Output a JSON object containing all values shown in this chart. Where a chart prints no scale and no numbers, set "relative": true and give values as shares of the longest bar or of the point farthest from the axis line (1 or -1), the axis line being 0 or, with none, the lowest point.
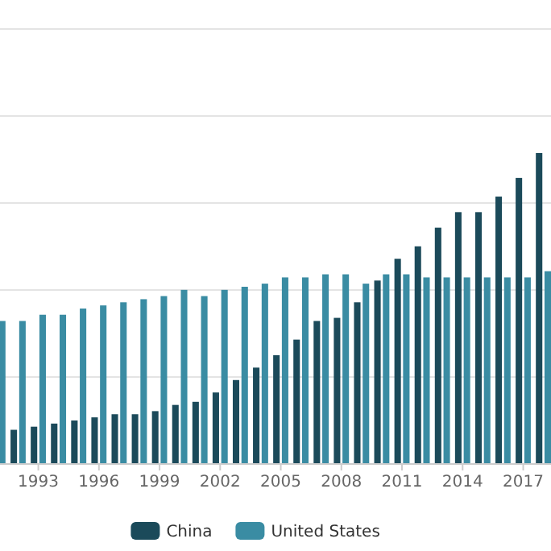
{
  "chart_data": {
    "type": "bar",
    "relative": true,
    "grid": "y",
    "legend": "bottom",
    "categories": [
      null,
      null,
      "1993",
      null,
      null,
      "1996",
      null,
      null,
      "1999",
      null,
      null,
      "2002",
      null,
      null,
      "2005",
      null,
      null,
      "2008",
      null,
      null,
      "2011",
      null,
      null,
      "2014",
      null,
      null,
      "2017",
      null
    ],
    "series": [
      {
        "name": "China",
        "color": "#1b4a5a",
        "values": [
          null,
          0.11,
          0.12,
          0.13,
          0.14,
          0.15,
          0.16,
          0.16,
          0.17,
          0.19,
          0.2,
          0.23,
          0.27,
          0.31,
          0.35,
          0.4,
          0.46,
          0.47,
          0.52,
          0.59,
          0.66,
          0.7,
          0.76,
          0.81,
          0.81,
          0.86,
          0.92,
          1
        ]
      },
      {
        "name": "United States",
        "color": "#3a8ca3",
        "values": [
          0.46,
          0.46,
          0.48,
          0.48,
          0.5,
          0.51,
          0.52,
          0.53,
          0.54,
          0.56,
          0.54,
          0.56,
          0.57,
          0.58,
          0.6,
          0.6,
          0.61,
          0.61,
          0.58,
          0.61,
          0.61,
          0.6,
          0.6,
          0.6,
          0.6,
          0.6,
          0.6,
          0.62
        ]
      }
    ]
  }
}
